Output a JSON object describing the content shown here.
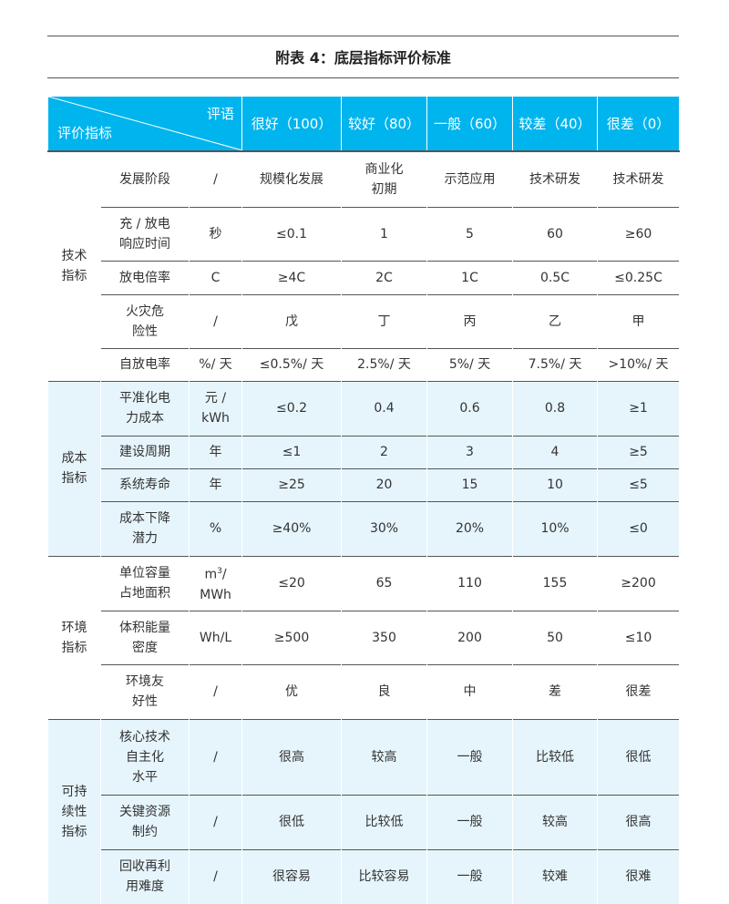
{
  "title": "附表 4：底层指标评价标准",
  "header": {
    "corner_top": "评语",
    "corner_bottom": "评价指标",
    "grades": [
      "很好（100）",
      "较好（80）",
      "一般（60）",
      "较差（40）",
      "很差（0）"
    ]
  },
  "colors": {
    "header_bg": "#00b4ee",
    "alt_group_bg": "#e6f5fc"
  },
  "groups": [
    {
      "name": "技术\n指标",
      "blue": false,
      "rows": [
        {
          "indicator": "发展阶段",
          "unit": "/",
          "values": [
            "规模化发展",
            "商业化\n初期",
            "示范应用",
            "技术研发",
            "技术研发"
          ],
          "h": 61
        },
        {
          "indicator": "充 / 放电\n响应时间",
          "unit": "秒",
          "values": [
            "≤0.1",
            "1",
            "5",
            "60",
            "≥60"
          ],
          "h": 59
        },
        {
          "indicator": "放电倍率",
          "unit": "C",
          "values": [
            "≥4C",
            "2C",
            "1C",
            "0.5C",
            "≤0.25C"
          ],
          "h": 37
        },
        {
          "indicator": "火灾危\n险性",
          "unit": "/",
          "values": [
            "戊",
            "丁",
            "丙",
            "乙",
            "甲"
          ],
          "h": 59
        },
        {
          "indicator": "自放电率",
          "unit": "%/ 天",
          "values": [
            "≤0.5%/ 天",
            "2.5%/ 天",
            "5%/ 天",
            "7.5%/ 天",
            ">10%/ 天"
          ],
          "h": 36
        }
      ]
    },
    {
      "name": "成本\n指标",
      "blue": true,
      "rows": [
        {
          "indicator": "平准化电\n力成本",
          "unit": "元 /\nkWh",
          "values": [
            "≤0.2",
            "0.4",
            "0.6",
            "0.8",
            "≥1"
          ],
          "h": 60
        },
        {
          "indicator": "建设周期",
          "unit": "年",
          "values": [
            "≤1",
            "2",
            "3",
            "4",
            "≥5"
          ],
          "h": 36
        },
        {
          "indicator": "系统寿命",
          "unit": "年",
          "values": [
            "≥25",
            "20",
            "15",
            "10",
            "≤5"
          ],
          "h": 36
        },
        {
          "indicator": "成本下降\n潜力",
          "unit": "%",
          "values": [
            "≥40%",
            "30%",
            "20%",
            "10%",
            "≤0"
          ],
          "h": 60
        }
      ]
    },
    {
      "name": "环境\n指标",
      "blue": false,
      "rows": [
        {
          "indicator": "单位容量\n占地面积",
          "unit": "m³/\nMWh",
          "values": [
            "≤20",
            "65",
            "110",
            "155",
            "≥200"
          ],
          "h": 60
        },
        {
          "indicator": "体积能量\n密度",
          "unit": "Wh/L",
          "values": [
            "≥500",
            "350",
            "200",
            "50",
            "≤10"
          ],
          "h": 59
        },
        {
          "indicator": "环境友\n好性",
          "unit": "/",
          "values": [
            "优",
            "良",
            "中",
            "差",
            "很差"
          ],
          "h": 60
        }
      ]
    },
    {
      "name": "可持\n续性\n指标",
      "blue": true,
      "rows": [
        {
          "indicator": "核心技术\n自主化\n水平",
          "unit": "/",
          "values": [
            "很高",
            "较高",
            "一般",
            "比较低",
            "很低"
          ],
          "h": 83
        },
        {
          "indicator": "关键资源\n制约",
          "unit": "/",
          "values": [
            "很低",
            "比较低",
            "一般",
            "较高",
            "很高"
          ],
          "h": 60
        },
        {
          "indicator": "回收再利\n用难度",
          "unit": "/",
          "values": [
            "很容易",
            "比较容易",
            "一般",
            "较难",
            "很难"
          ],
          "h": 60
        }
      ]
    }
  ]
}
